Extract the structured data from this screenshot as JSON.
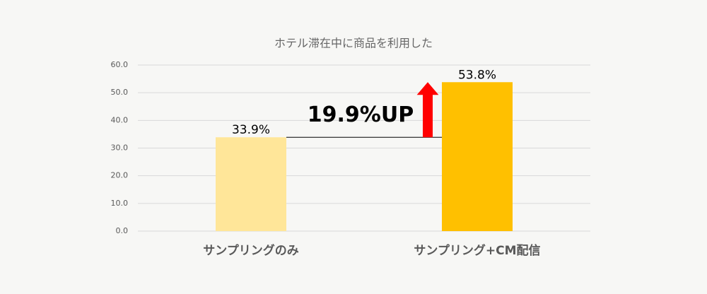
{
  "chart_data": {
    "type": "bar",
    "title": "ホテル滞在中に商品を利用した",
    "categories": [
      "サンプリングのみ",
      "サンプリング+CM配信"
    ],
    "values": [
      33.9,
      53.8
    ],
    "value_labels": [
      "33.9%",
      "53.8%"
    ],
    "colors": [
      "#ffe699",
      "#ffc000"
    ],
    "ylim": [
      0,
      60
    ],
    "yticks": [
      {
        "value": 0,
        "label": "0.0"
      },
      {
        "value": 10,
        "label": "10.0"
      },
      {
        "value": 20,
        "label": "20.0"
      },
      {
        "value": 30,
        "label": "30.0"
      },
      {
        "value": 40,
        "label": "40.0"
      },
      {
        "value": 50,
        "label": "50.0"
      },
      {
        "value": 60,
        "label": "60.0"
      }
    ],
    "grid": true,
    "annotation": "19.9%UP"
  }
}
